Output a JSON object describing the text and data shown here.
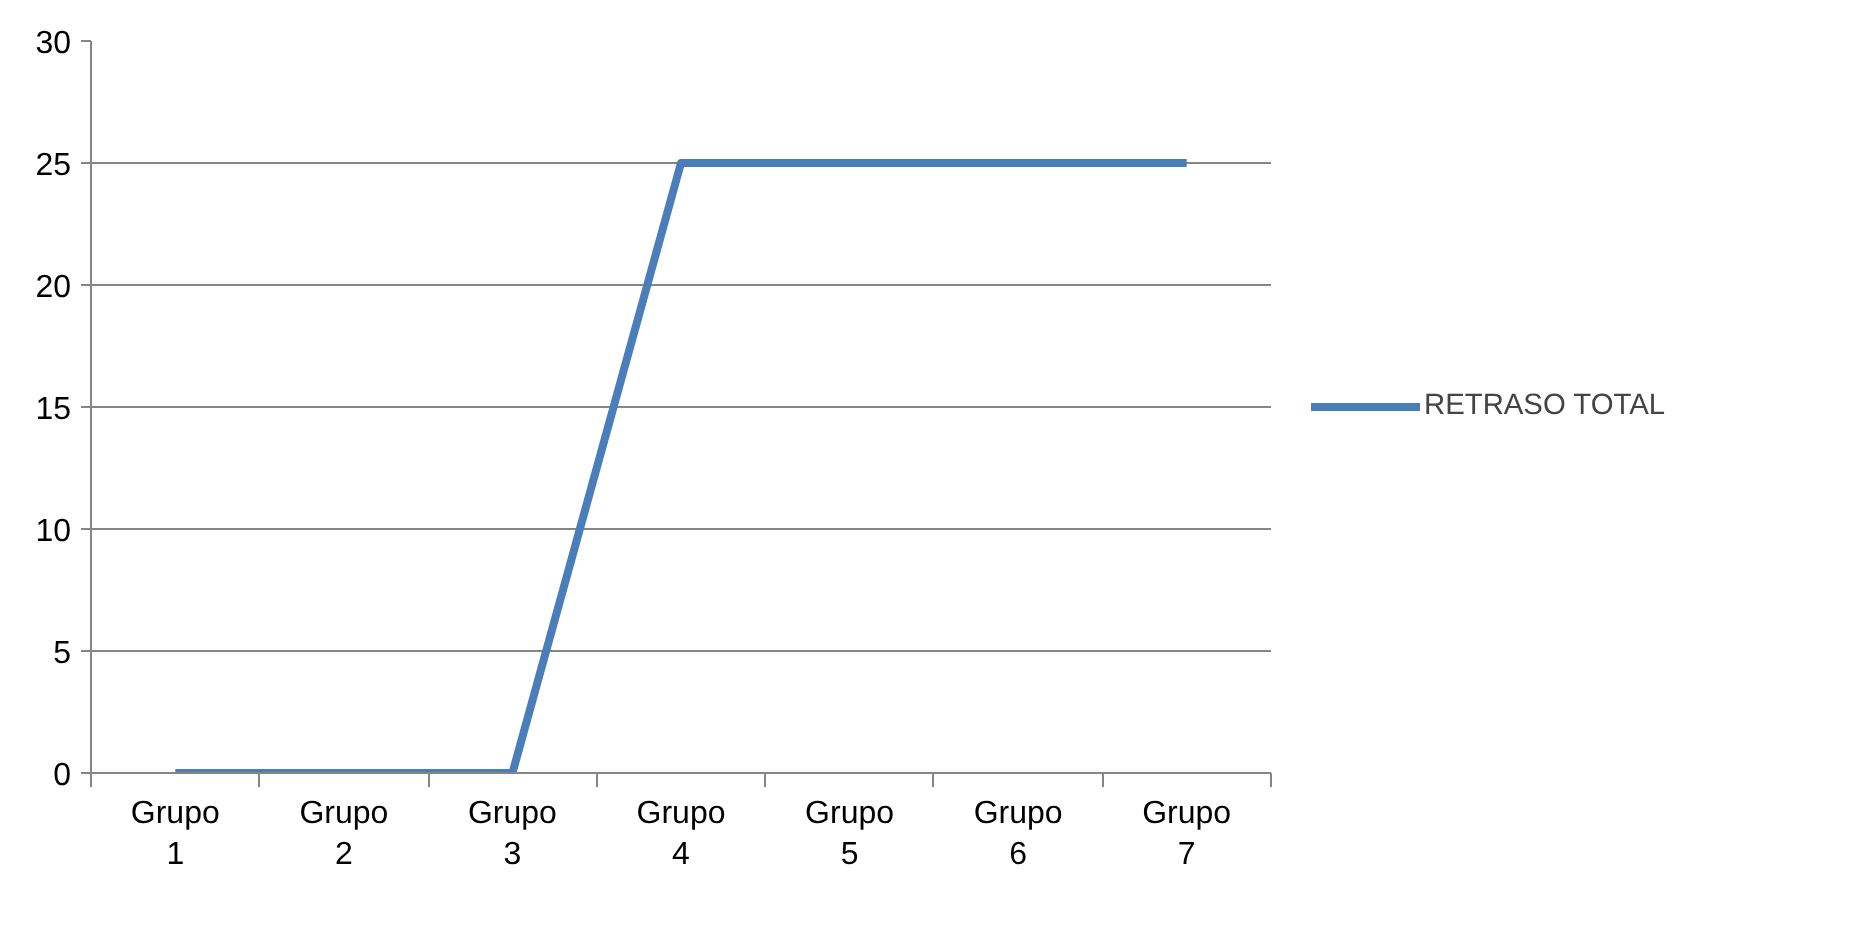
{
  "chart_data": {
    "type": "line",
    "categories": [
      "Grupo 1",
      "Grupo 2",
      "Grupo 3",
      "Grupo 4",
      "Grupo 5",
      "Grupo 6",
      "Grupo 7"
    ],
    "series": [
      {
        "name": "RETRASO TOTAL",
        "color": "#4a7ebb",
        "values": [
          0,
          0,
          0,
          25,
          25,
          25,
          25
        ]
      }
    ],
    "ylim": [
      0,
      30
    ],
    "yticks": [
      0,
      5,
      10,
      15,
      20,
      25,
      30
    ],
    "grid": "y",
    "legend": "right",
    "marker": "none",
    "line_style": "solid"
  }
}
